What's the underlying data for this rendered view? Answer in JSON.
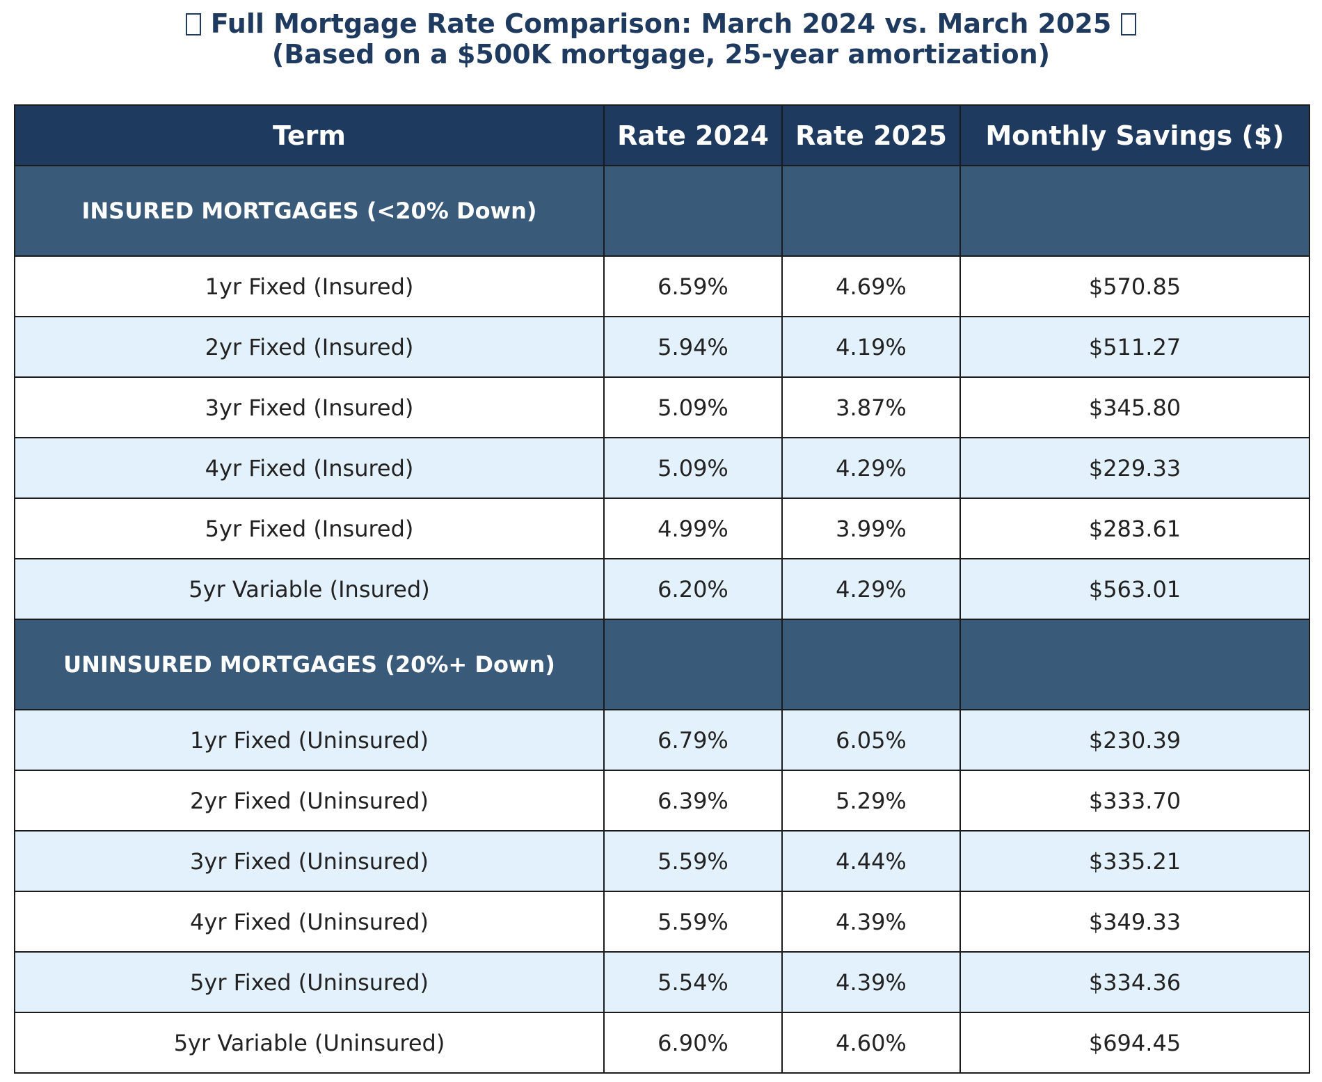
{
  "chart_data": {
    "type": "table",
    "title": "Full Mortgage Rate Comparison: March 2024 vs. March 2025",
    "subtitle": "(Based on a $500K mortgage, 25-year amortization)",
    "columns": [
      "Term",
      "Rate 2024",
      "Rate 2025",
      "Monthly Savings ($)"
    ],
    "sections": [
      {
        "label": "INSURED MORTGAGES (<20% Down)",
        "rows": [
          {
            "term": "1yr Fixed (Insured)",
            "rate_2024": "6.59%",
            "rate_2025": "4.69%",
            "savings": "$570.85"
          },
          {
            "term": "2yr Fixed (Insured)",
            "rate_2024": "5.94%",
            "rate_2025": "4.19%",
            "savings": "$511.27"
          },
          {
            "term": "3yr Fixed (Insured)",
            "rate_2024": "5.09%",
            "rate_2025": "3.87%",
            "savings": "$345.80"
          },
          {
            "term": "4yr Fixed (Insured)",
            "rate_2024": "5.09%",
            "rate_2025": "4.29%",
            "savings": "$229.33"
          },
          {
            "term": "5yr Fixed (Insured)",
            "rate_2024": "4.99%",
            "rate_2025": "3.99%",
            "savings": "$283.61"
          },
          {
            "term": "5yr Variable (Insured)",
            "rate_2024": "6.20%",
            "rate_2025": "4.29%",
            "savings": "$563.01"
          }
        ]
      },
      {
        "label": "UNINSURED MORTGAGES (20%+ Down)",
        "rows": [
          {
            "term": "1yr Fixed (Uninsured)",
            "rate_2024": "6.79%",
            "rate_2025": "6.05%",
            "savings": "$230.39"
          },
          {
            "term": "2yr Fixed (Uninsured)",
            "rate_2024": "6.39%",
            "rate_2025": "5.29%",
            "savings": "$333.70"
          },
          {
            "term": "3yr Fixed (Uninsured)",
            "rate_2024": "5.59%",
            "rate_2025": "4.44%",
            "savings": "$335.21"
          },
          {
            "term": "4yr Fixed (Uninsured)",
            "rate_2024": "5.59%",
            "rate_2025": "4.39%",
            "savings": "$349.33"
          },
          {
            "term": "5yr Fixed (Uninsured)",
            "rate_2024": "5.54%",
            "rate_2025": "4.39%",
            "savings": "$334.36"
          },
          {
            "term": "5yr Variable (Uninsured)",
            "rate_2024": "6.90%",
            "rate_2025": "4.60%",
            "savings": "$694.45"
          }
        ]
      }
    ],
    "colors": {
      "title_text": "#1f3a5f",
      "header_bg": "#1f3a5f",
      "section_bg": "#3a5a7a",
      "row_alt_bg": "#e3f1fc",
      "row_bg": "#ffffff",
      "border": "#1b1b1b"
    }
  }
}
